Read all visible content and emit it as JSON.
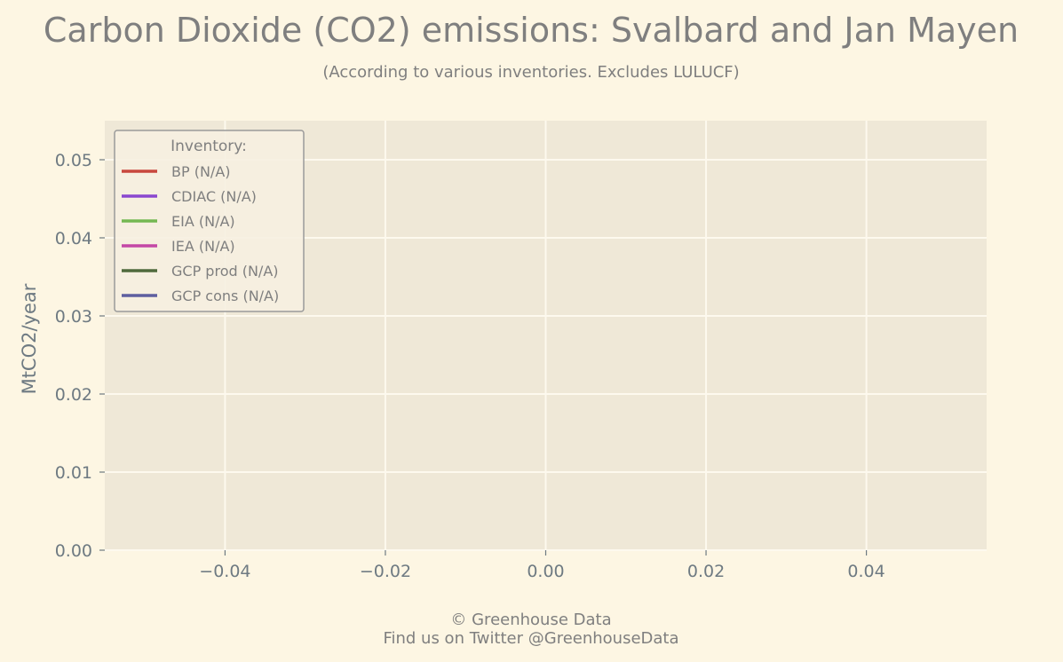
{
  "chart_data": {
    "type": "line",
    "title": "Carbon Dioxide (CO2) emissions: Svalbard and Jan Mayen",
    "subtitle": "(According to various inventories. Excludes LULUCF)",
    "xlabel": "",
    "ylabel": "MtCO2/year",
    "xlim": [
      -0.055,
      0.055
    ],
    "ylim": [
      0.0,
      0.055
    ],
    "x_ticks": [
      -0.04,
      -0.02,
      0.0,
      0.02,
      0.04
    ],
    "x_tick_labels": [
      "−0.04",
      "−0.02",
      "0.00",
      "0.02",
      "0.04"
    ],
    "y_ticks": [
      0.0,
      0.01,
      0.02,
      0.03,
      0.04,
      0.05
    ],
    "y_tick_labels": [
      "0.00",
      "0.01",
      "0.02",
      "0.03",
      "0.04",
      "0.05"
    ],
    "grid": true,
    "legend": {
      "title": "Inventory:",
      "placement": "top-left"
    },
    "series": [
      {
        "name": "BP (N/A)",
        "color": "#c8473d",
        "x": [],
        "y": []
      },
      {
        "name": "CDIAC (N/A)",
        "color": "#8a47cf",
        "x": [],
        "y": []
      },
      {
        "name": "EIA (N/A)",
        "color": "#74b852",
        "x": [],
        "y": []
      },
      {
        "name": "IEA (N/A)",
        "color": "#c447a6",
        "x": [],
        "y": []
      },
      {
        "name": "GCP prod (N/A)",
        "color": "#4f6a3c",
        "x": [],
        "y": []
      },
      {
        "name": "GCP cons (N/A)",
        "color": "#5e5fa0",
        "x": [],
        "y": []
      }
    ]
  },
  "footer": {
    "copyright": "© Greenhouse Data",
    "twitter": "Find us on Twitter @GreenhouseData"
  },
  "colors": {
    "background": "#fdf6e3",
    "plot_background": "#efe8d7",
    "grid": "#fdf9ee",
    "text": "#7f7f7f",
    "tick": "#6e7a82"
  }
}
